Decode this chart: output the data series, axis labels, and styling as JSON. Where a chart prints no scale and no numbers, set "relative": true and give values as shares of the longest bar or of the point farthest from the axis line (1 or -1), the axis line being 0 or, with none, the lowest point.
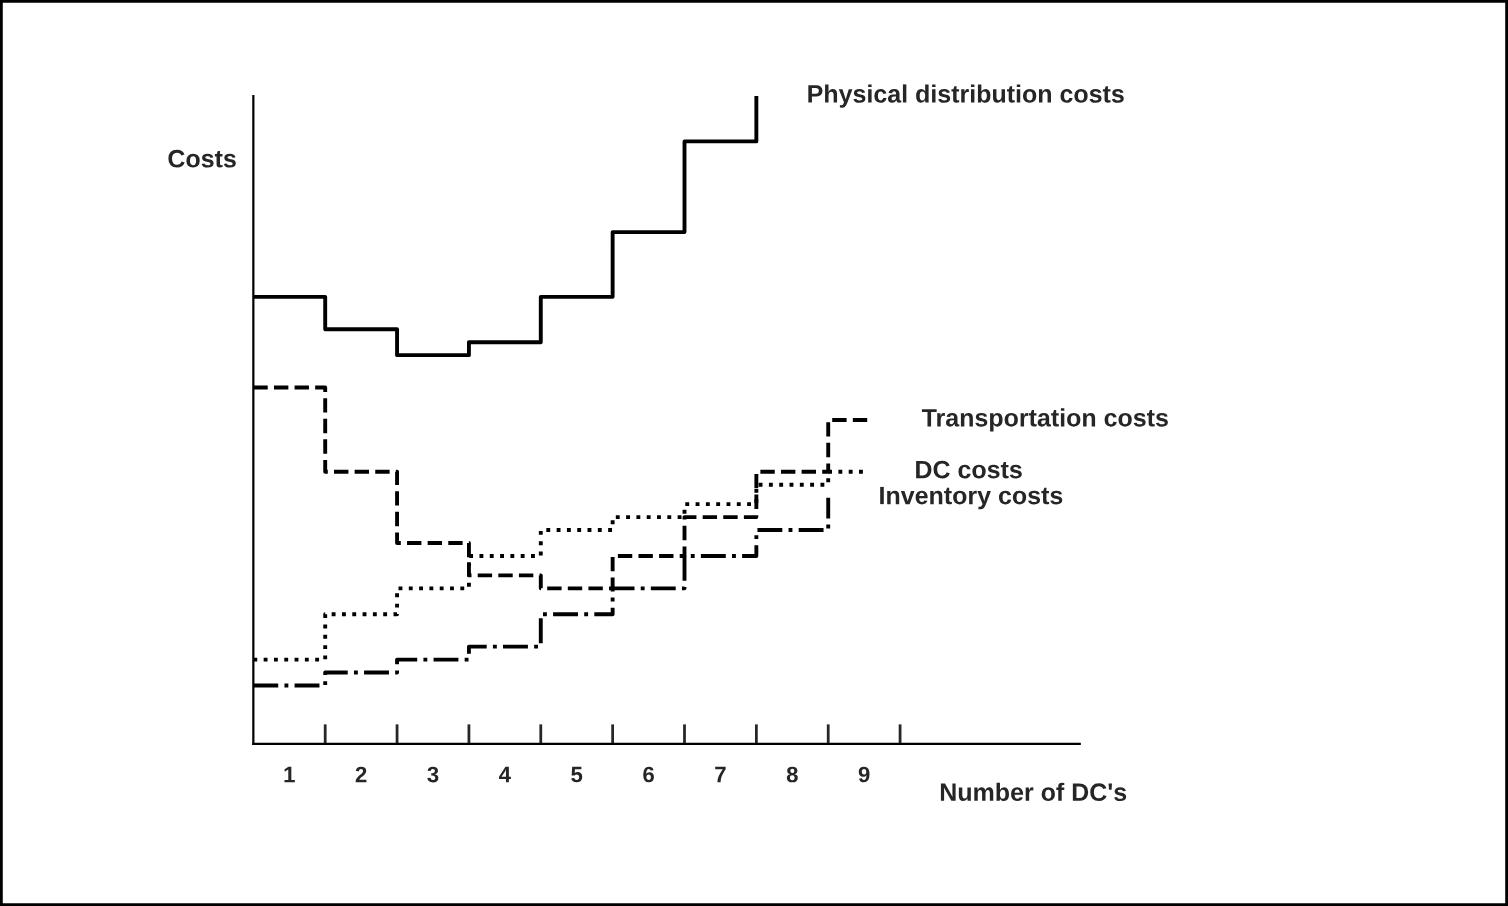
{
  "chart_data": {
    "type": "step",
    "relative": true,
    "xlabel": "Number of DC's",
    "ylabel": "Costs",
    "xlim": [
      0,
      11.5
    ],
    "xticks": [
      {
        "value": 0.5,
        "label": "1"
      },
      {
        "value": 1.5,
        "label": "2"
      },
      {
        "value": 2.5,
        "label": "3"
      },
      {
        "value": 3.5,
        "label": "4"
      },
      {
        "value": 4.5,
        "label": "5"
      },
      {
        "value": 5.5,
        "label": "6"
      },
      {
        "value": 6.5,
        "label": "7"
      },
      {
        "value": 7.5,
        "label": "8"
      },
      {
        "value": 8.5,
        "label": "9"
      },
      {
        "value": 1,
        "label": null
      },
      {
        "value": 2,
        "label": null
      },
      {
        "value": 3,
        "label": null
      },
      {
        "value": 4,
        "label": null
      },
      {
        "value": 5,
        "label": null
      },
      {
        "value": 6,
        "label": null
      },
      {
        "value": 7,
        "label": null
      },
      {
        "value": 8,
        "label": null
      },
      {
        "value": 9,
        "label": null
      }
    ],
    "grid": false,
    "legend": false,
    "series": [
      {
        "name": "Physical distribution costs",
        "color": "#000000",
        "line_style": "solid",
        "x": [
          0,
          1,
          2,
          3,
          4,
          5,
          6,
          7
        ],
        "values": [
          0.69,
          0.64,
          0.6,
          0.62,
          0.69,
          0.79,
          0.93,
          1.0
        ]
      },
      {
        "name": "Transportation costs",
        "color": "#000000",
        "line_style": "dashed",
        "x": [
          0,
          1,
          2,
          3,
          4,
          5,
          6,
          7,
          8,
          8.6
        ],
        "values": [
          0.55,
          0.42,
          0.31,
          0.26,
          0.24,
          0.29,
          0.35,
          0.42,
          0.5,
          0.5
        ]
      },
      {
        "name": "DC costs",
        "color": "#000000",
        "line_style": "dotted",
        "x": [
          0,
          1,
          2,
          3,
          4,
          5,
          6,
          7,
          8,
          8.5
        ],
        "values": [
          0.13,
          0.2,
          0.24,
          0.29,
          0.33,
          0.35,
          0.37,
          0.4,
          0.42,
          0.42
        ]
      },
      {
        "name": "Inventory costs",
        "color": "#000000",
        "line_style": "dashdot",
        "x": [
          0,
          1,
          2,
          3,
          4,
          5,
          6,
          7,
          8
        ],
        "values": [
          0.09,
          0.11,
          0.13,
          0.15,
          0.2,
          0.24,
          0.29,
          0.33,
          0.38
        ]
      }
    ]
  }
}
